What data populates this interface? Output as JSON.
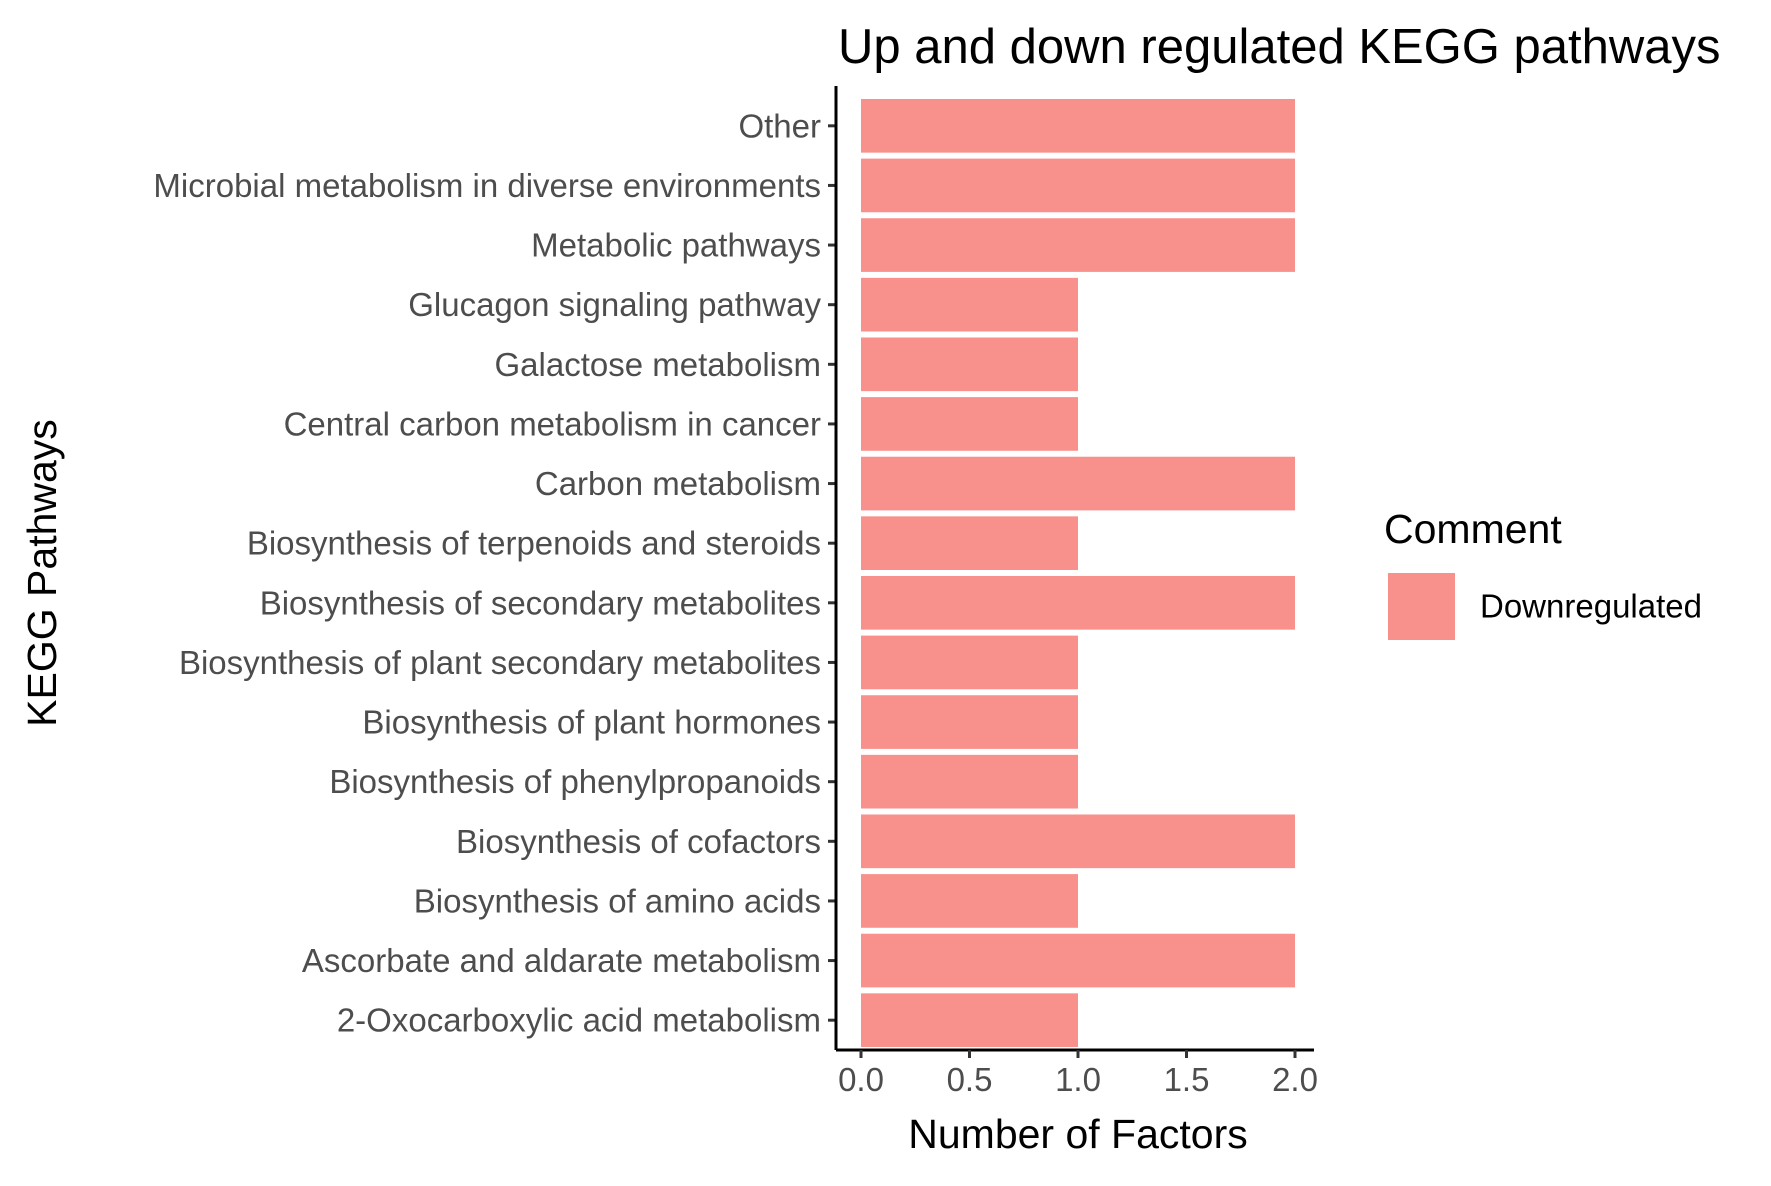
{
  "chart_data": {
    "type": "bar",
    "orientation": "horizontal",
    "title": "Up and down regulated KEGG pathways",
    "xlabel": "Number of Factors",
    "ylabel": "KEGG Pathways",
    "xlim": [
      0,
      2
    ],
    "xticks": [
      "0.0",
      "0.5",
      "1.0",
      "1.5",
      "2.0"
    ],
    "grid": false,
    "categories": [
      "Other",
      "Microbial metabolism in diverse environments",
      "Metabolic pathways",
      "Glucagon signaling pathway",
      "Galactose metabolism",
      "Central carbon metabolism in cancer",
      "Carbon metabolism",
      "Biosynthesis of terpenoids and steroids",
      "Biosynthesis of secondary metabolites",
      "Biosynthesis of plant secondary metabolites",
      "Biosynthesis of plant hormones",
      "Biosynthesis of phenylpropanoids",
      "Biosynthesis of cofactors",
      "Biosynthesis of amino acids",
      "Ascorbate and aldarate metabolism",
      "2-Oxocarboxylic acid metabolism"
    ],
    "series": [
      {
        "name": "Downregulated",
        "color": "#f8908c",
        "values": [
          2,
          2,
          2,
          1,
          1,
          1,
          2,
          1,
          2,
          1,
          1,
          1,
          2,
          1,
          2,
          1
        ]
      }
    ],
    "legend": {
      "title": "Comment",
      "placement": "right"
    }
  }
}
